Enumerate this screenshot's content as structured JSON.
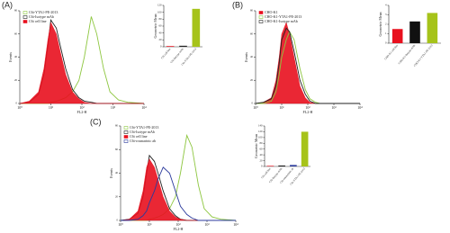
{
  "chart_data": [
    {
      "type": "line",
      "label": "(A)",
      "xlabel": "FL2-H",
      "ylabel": "Events",
      "log_x": true,
      "xlim": [
        1,
        10000
      ],
      "xticks": [
        {
          "value": 1,
          "label": "10⁰"
        },
        {
          "value": 10,
          "label": "10¹"
        },
        {
          "value": 100,
          "label": "10²"
        },
        {
          "value": 1000,
          "label": "10³"
        },
        {
          "value": 10000,
          "label": "10⁴"
        }
      ],
      "ylim": [
        0,
        80
      ],
      "yticks": [
        0,
        20,
        40,
        60,
        80
      ],
      "x": [
        1,
        2,
        4,
        6,
        8,
        10,
        15,
        20,
        30,
        50,
        80,
        120,
        200,
        300,
        500,
        800,
        1500,
        3000,
        10000
      ],
      "series": [
        {
          "name": "C6t-YTA1-PE-2013",
          "color": "#8dc63f",
          "fill": false,
          "values": [
            0,
            0,
            0,
            0,
            0,
            1,
            2,
            3,
            5,
            10,
            20,
            40,
            75,
            60,
            30,
            10,
            3,
            1,
            0
          ]
        },
        {
          "name": "C6t-Isotype mAb",
          "color": "#222222",
          "fill": false,
          "values": [
            0,
            1,
            8,
            25,
            50,
            72,
            65,
            50,
            30,
            12,
            5,
            2,
            1,
            0,
            0,
            0,
            0,
            0,
            0
          ]
        },
        {
          "name": "C6t cell line",
          "color": "#e8101e",
          "fill": true,
          "values": [
            0,
            2,
            10,
            30,
            55,
            70,
            60,
            45,
            25,
            10,
            4,
            1,
            0,
            0,
            0,
            0,
            0,
            0,
            0
          ]
        }
      ]
    },
    {
      "type": "bar",
      "ylabel": "Geometric Mean",
      "categories": [
        "C6t cell line",
        "C6t-Isotype mAb",
        "C6t-YTA1-PE-2013"
      ],
      "values": [
        2,
        3,
        110
      ],
      "colors": [
        "#e8101e",
        "#222222",
        "#a6c31a"
      ],
      "ylim": [
        0,
        120
      ],
      "yticks": [
        0,
        20,
        40,
        60,
        80,
        100,
        120
      ]
    },
    {
      "type": "line",
      "label": "(B)",
      "xlabel": "FL2-H",
      "ylabel": "Events",
      "log_x": true,
      "xlim": [
        1,
        10000
      ],
      "xticks": [
        {
          "value": 1,
          "label": "10⁰"
        },
        {
          "value": 10,
          "label": "10¹"
        },
        {
          "value": 100,
          "label": "10²"
        },
        {
          "value": 1000,
          "label": "10³"
        },
        {
          "value": 10000,
          "label": "10⁴"
        }
      ],
      "ylim": [
        0,
        80
      ],
      "yticks": [
        0,
        20,
        40,
        60,
        80
      ],
      "x": [
        1,
        2,
        4,
        6,
        8,
        10,
        15,
        20,
        30,
        50,
        80,
        120,
        200,
        300,
        500,
        800,
        1500,
        3000,
        10000
      ],
      "series": [
        {
          "name": "CHO-K1",
          "color": "#e8101e",
          "fill": true,
          "values": [
            0,
            1,
            5,
            20,
            40,
            60,
            70,
            60,
            40,
            15,
            5,
            1,
            0,
            0,
            0,
            0,
            0,
            0,
            0
          ]
        },
        {
          "name": "CHO-K1-YTA1-PE-2013",
          "color": "#8dc63f",
          "fill": false,
          "values": [
            0,
            0,
            2,
            10,
            25,
            40,
            55,
            62,
            55,
            30,
            12,
            4,
            1,
            0,
            0,
            0,
            0,
            0,
            0
          ]
        },
        {
          "name": "CHO-K1-Isotype mAb",
          "color": "#222222",
          "fill": false,
          "values": [
            0,
            1,
            4,
            15,
            35,
            55,
            65,
            62,
            45,
            20,
            8,
            2,
            0,
            0,
            0,
            0,
            0,
            0,
            0
          ]
        }
      ]
    },
    {
      "type": "bar",
      "ylabel": "Geometric Mean",
      "categories": [
        "CHO-K1 cell line",
        "CHO-K1-Isotype mAb",
        "CHO-K1-YTA1-PE-2013"
      ],
      "values": [
        1.5,
        2.3,
        3.2
      ],
      "colors": [
        "#e8101e",
        "#111111",
        "#a6c31a"
      ],
      "ylim": [
        0,
        4
      ],
      "yticks": [
        0,
        1,
        2,
        3,
        4
      ]
    },
    {
      "type": "line",
      "label": "(C)",
      "xlabel": "FL2-H",
      "ylabel": "Events",
      "log_x": true,
      "xlim": [
        1,
        10000
      ],
      "xticks": [
        {
          "value": 1,
          "label": "10⁰"
        },
        {
          "value": 10,
          "label": "10¹"
        },
        {
          "value": 100,
          "label": "10²"
        },
        {
          "value": 1000,
          "label": "10³"
        },
        {
          "value": 10000,
          "label": "10⁴"
        }
      ],
      "ylim": [
        0,
        80
      ],
      "yticks": [
        0,
        20,
        40,
        60,
        80
      ],
      "x": [
        1,
        2,
        4,
        6,
        8,
        10,
        15,
        20,
        30,
        50,
        80,
        120,
        200,
        300,
        500,
        800,
        1500,
        3000,
        10000
      ],
      "series": [
        {
          "name": "C6t-YTA1-PE-2013",
          "color": "#8dc63f",
          "fill": false,
          "values": [
            0,
            0,
            0,
            0,
            0,
            1,
            2,
            3,
            5,
            10,
            20,
            40,
            72,
            62,
            30,
            10,
            3,
            1,
            0
          ]
        },
        {
          "name": "C6t-Isotype mAb",
          "color": "#222222",
          "fill": false,
          "values": [
            0,
            1,
            6,
            20,
            40,
            55,
            50,
            40,
            25,
            10,
            4,
            1,
            0,
            0,
            0,
            0,
            0,
            0,
            0
          ]
        },
        {
          "name": "C6t cell line",
          "color": "#e8101e",
          "fill": true,
          "values": [
            0,
            1,
            8,
            25,
            45,
            52,
            45,
            35,
            20,
            8,
            3,
            1,
            0,
            0,
            0,
            0,
            0,
            0,
            0
          ]
        },
        {
          "name": "C6t-rosmarinic ab",
          "color": "#2b3a9c",
          "fill": false,
          "values": [
            0,
            0,
            1,
            4,
            8,
            15,
            25,
            35,
            45,
            40,
            25,
            12,
            5,
            2,
            0,
            0,
            0,
            0,
            0
          ]
        }
      ]
    },
    {
      "type": "bar",
      "ylabel": "Geometric Mean",
      "categories": [
        "C6t cell line",
        "C6t-Isotype mAb",
        "C6t-rosmarinic ab",
        "C6t-YTA1-PE-2013"
      ],
      "values": [
        2,
        3,
        5,
        120
      ],
      "colors": [
        "#e8101e",
        "#111111",
        "#2b3a9c",
        "#a6c31a"
      ],
      "ylim": [
        0,
        140
      ],
      "yticks": [
        0,
        20,
        40,
        60,
        80,
        100,
        120,
        140
      ]
    }
  ]
}
